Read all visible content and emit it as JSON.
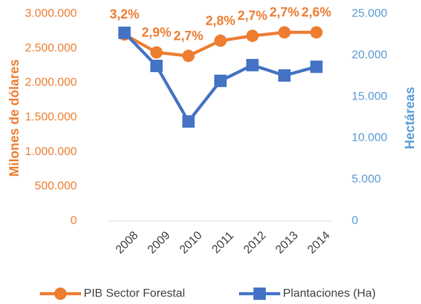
{
  "chart_data": {
    "type": "line",
    "categories": [
      "2008",
      "2009",
      "2010",
      "2011",
      "2012",
      "2013",
      "2014"
    ],
    "y_label": "Milones de dólares",
    "y2_label": "Hectáreas",
    "series": [
      {
        "name": "PIB Sector Forestal",
        "color": "#ED7D31",
        "marker": "circle",
        "values": [
          2700000,
          2440000,
          2390000,
          2610000,
          2680000,
          2730000,
          2730000
        ],
        "annotations": [
          "3,2%",
          "2,9%",
          "2,7%",
          "2,8%",
          "2,7%",
          "2,7%",
          "2,6%"
        ]
      },
      {
        "name": "Plantaciones (Ha)",
        "color": "#4472C4",
        "marker": "square",
        "axis": "y2",
        "values": [
          22700,
          18700,
          12000,
          16900,
          18800,
          17550,
          18600
        ]
      }
    ],
    "ylim": [
      0,
      3000000
    ],
    "yticks": [
      0,
      {
        "value": 500000,
        "label": "500.000"
      },
      {
        "value": 1000000,
        "label": "1.000.000"
      },
      {
        "value": 1500000,
        "label": "1.500.000"
      },
      {
        "value": 2000000,
        "label": "2.000.000"
      },
      {
        "value": 2500000,
        "label": "2.500.000"
      },
      {
        "value": 3000000,
        "label": "3.000.000"
      }
    ],
    "y2lim": [
      0,
      25000
    ],
    "y2ticks": [
      0,
      {
        "value": 5000,
        "label": "5.000"
      },
      {
        "value": 10000,
        "label": "10.000"
      },
      {
        "value": 15000,
        "label": "15.000"
      },
      {
        "value": 20000,
        "label": "20.000"
      },
      {
        "value": 25000,
        "label": "25.000"
      }
    ],
    "legend": "bottom"
  }
}
